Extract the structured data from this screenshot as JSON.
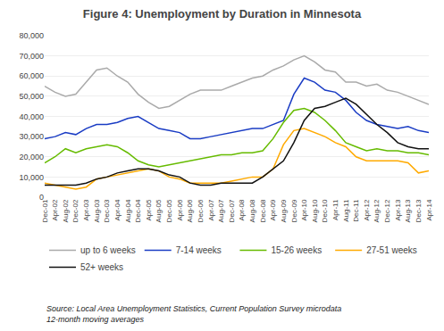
{
  "chart_data": {
    "type": "line",
    "title": "Figure 4: Unemployment by Duration in Minnesota",
    "annotations": [
      "Source: Local Area Unemployment Statistics, Current Population Survey microdata",
      "12-month moving averages"
    ],
    "categories": [
      "Dec-01",
      "Apr-02",
      "Aug-02",
      "Dec-02",
      "Apr-03",
      "Aug-03",
      "Dec-03",
      "Apr-04",
      "Aug-04",
      "Dec-04",
      "Apr-05",
      "Aug-05",
      "Dec-05",
      "Apr-06",
      "Aug-06",
      "Dec-06",
      "Apr-07",
      "Aug-07",
      "Dec-07",
      "Apr-08",
      "Aug-08",
      "Dec-08",
      "Apr-09",
      "Aug-09",
      "Dec-09",
      "Apr-10",
      "Aug-10",
      "Dec-10",
      "Apr-11",
      "Aug-11",
      "Dec-11",
      "Apr-12",
      "Aug-12",
      "Dec-12",
      "Apr-13",
      "Aug-13",
      "Dec-13",
      "Apr-14"
    ],
    "series": [
      {
        "name": "up to 6 weeks",
        "color": "#aaaaaa",
        "values": [
          55000,
          52000,
          50000,
          51000,
          57000,
          63000,
          64000,
          60000,
          57000,
          51000,
          47000,
          44000,
          45000,
          48000,
          51000,
          53000,
          53000,
          53000,
          55000,
          57000,
          59000,
          60000,
          63000,
          65000,
          68000,
          70000,
          67000,
          63000,
          62000,
          57000,
          57000,
          55000,
          56000,
          53000,
          52000,
          50000,
          48000,
          46000
        ]
      },
      {
        "name": "7-14 weeks",
        "color": "#1a3cc4",
        "values": [
          29000,
          30000,
          32000,
          31000,
          34000,
          36000,
          36000,
          37000,
          39000,
          40000,
          37000,
          34000,
          33000,
          32000,
          29000,
          29000,
          30000,
          31000,
          32000,
          33000,
          34000,
          34000,
          36000,
          38000,
          51000,
          59000,
          57000,
          53000,
          52000,
          48000,
          42000,
          38000,
          36000,
          35000,
          34000,
          35000,
          33000,
          32000
        ]
      },
      {
        "name": "15-26 weeks",
        "color": "#66bb00",
        "values": [
          17000,
          20000,
          24000,
          22000,
          24000,
          25000,
          26000,
          25000,
          22000,
          18000,
          16000,
          15000,
          16000,
          17000,
          18000,
          19000,
          20000,
          21000,
          21000,
          22000,
          22000,
          23000,
          29000,
          37000,
          43000,
          44000,
          42000,
          38000,
          33000,
          27000,
          25000,
          23000,
          24000,
          23000,
          23000,
          22000,
          22000,
          21000
        ]
      },
      {
        "name": "27-51 weeks",
        "color": "#ffaa00",
        "values": [
          7000,
          6000,
          5000,
          4000,
          5000,
          9000,
          10000,
          11000,
          12000,
          13000,
          14000,
          13000,
          10000,
          9000,
          7000,
          7000,
          7000,
          7000,
          8000,
          9000,
          10000,
          10000,
          14000,
          26000,
          33000,
          34000,
          32000,
          30000,
          27000,
          25000,
          20000,
          18000,
          18000,
          18000,
          18000,
          17000,
          12000,
          13000
        ]
      },
      {
        "name": "52+ weeks",
        "color": "#111111",
        "values": [
          6000,
          6000,
          6000,
          6000,
          7000,
          9000,
          10000,
          12000,
          13000,
          14000,
          14000,
          13000,
          11000,
          10000,
          7000,
          6000,
          6000,
          7000,
          7000,
          7000,
          7000,
          10000,
          14000,
          18000,
          27000,
          38000,
          44000,
          45000,
          47000,
          49000,
          46000,
          41000,
          36000,
          32000,
          27000,
          25000,
          24000,
          24000
        ]
      }
    ],
    "ylim": [
      0,
      80000
    ],
    "yticks": [
      0,
      {
        "value": 10000,
        "label": "10,000"
      },
      {
        "value": 20000,
        "label": "20,000"
      },
      {
        "value": 30000,
        "label": "30,000"
      },
      {
        "value": 40000,
        "label": "40,000"
      },
      {
        "value": 50000,
        "label": "50,000"
      },
      {
        "value": 60000,
        "label": "60,000"
      },
      {
        "value": 70000,
        "label": "70,000"
      },
      {
        "value": 80000,
        "label": "80,000"
      }
    ],
    "grid": true,
    "legend": "bottom"
  }
}
